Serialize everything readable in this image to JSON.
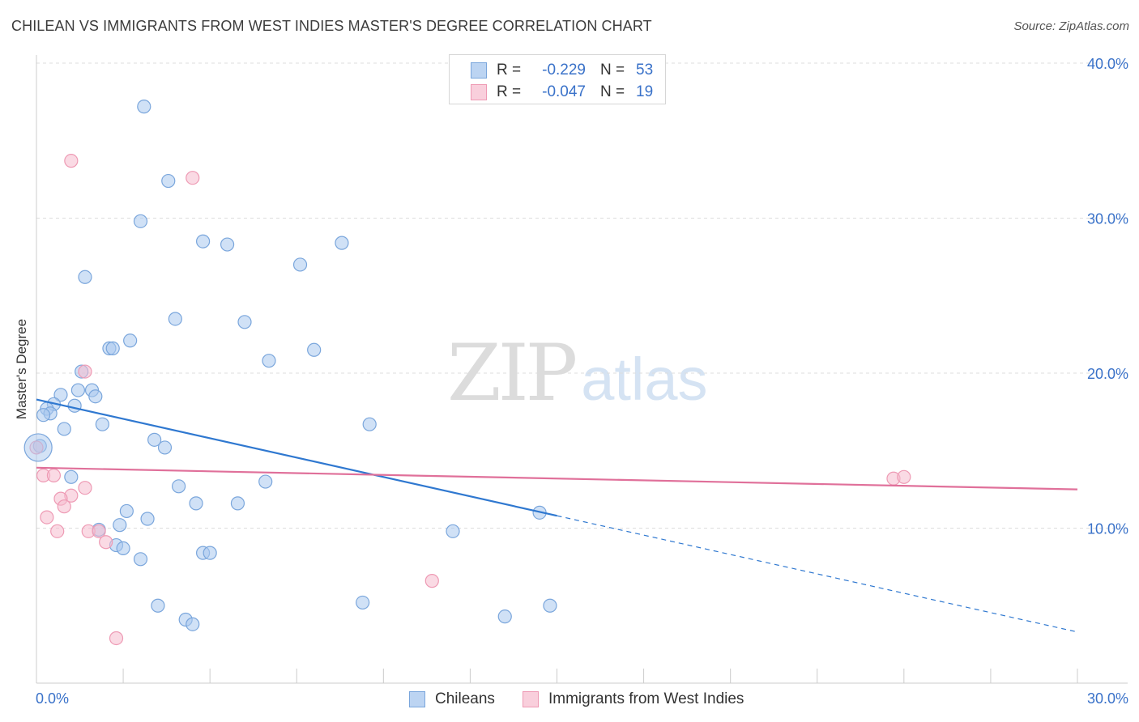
{
  "title": "CHILEAN VS IMMIGRANTS FROM WEST INDIES MASTER'S DEGREE CORRELATION CHART",
  "source": "Source: ZipAtlas.com",
  "watermark": {
    "zip": "ZIP",
    "atlas": "atlas"
  },
  "legend": {
    "r_label": "R =",
    "n_label": "N =",
    "series1": {
      "r": "-0.229",
      "n": "53"
    },
    "series2": {
      "r": "-0.047",
      "n": "19"
    }
  },
  "bottom_legend": {
    "series1": "Chileans",
    "series2": "Immigrants from West Indies"
  },
  "colors": {
    "blue_fill": "#a9c8ee",
    "blue_stroke": "#7aa6dc",
    "blue_line": "#2f78d0",
    "pink_fill": "#f6bccd",
    "pink_stroke": "#ee9ab4",
    "pink_line": "#e0709a",
    "axis_text": "#3a72c9",
    "grid": "#dddddd"
  },
  "chart_data": {
    "type": "scatter",
    "title": "CHILEAN VS IMMIGRANTS FROM WEST INDIES MASTER'S DEGREE CORRELATION CHART",
    "xlabel": "",
    "ylabel": "Master's Degree",
    "xlim": [
      0,
      30
    ],
    "ylim": [
      0,
      40
    ],
    "x_tick_labels": [
      "0.0%",
      "30.0%"
    ],
    "y_ticks": [
      10,
      20,
      30,
      40
    ],
    "y_tick_labels": [
      "10.0%",
      "20.0%",
      "30.0%",
      "40.0%"
    ],
    "grid": true,
    "series": [
      {
        "name": "Chileans",
        "r": -0.229,
        "n": 53,
        "points": [
          [
            3.1,
            37.2
          ],
          [
            3.8,
            32.4
          ],
          [
            3.0,
            29.8
          ],
          [
            4.8,
            28.5
          ],
          [
            5.5,
            28.3
          ],
          [
            8.8,
            28.4
          ],
          [
            7.6,
            27.0
          ],
          [
            1.4,
            26.2
          ],
          [
            4.0,
            23.5
          ],
          [
            6.0,
            23.3
          ],
          [
            2.7,
            22.1
          ],
          [
            2.1,
            21.6
          ],
          [
            2.2,
            21.6
          ],
          [
            8.0,
            21.5
          ],
          [
            6.7,
            20.8
          ],
          [
            1.3,
            20.1
          ],
          [
            1.6,
            18.9
          ],
          [
            1.2,
            18.9
          ],
          [
            1.7,
            18.5
          ],
          [
            0.7,
            18.6
          ],
          [
            0.5,
            18.0
          ],
          [
            1.1,
            17.9
          ],
          [
            0.3,
            17.7
          ],
          [
            0.4,
            17.4
          ],
          [
            0.2,
            17.3
          ],
          [
            0.8,
            16.4
          ],
          [
            1.9,
            16.7
          ],
          [
            9.6,
            16.7
          ],
          [
            3.4,
            15.7
          ],
          [
            3.7,
            15.2
          ],
          [
            0.1,
            15.3
          ],
          [
            1.0,
            13.3
          ],
          [
            6.6,
            13.0
          ],
          [
            4.1,
            12.7
          ],
          [
            4.6,
            11.6
          ],
          [
            5.8,
            11.6
          ],
          [
            2.6,
            11.1
          ],
          [
            3.2,
            10.6
          ],
          [
            2.4,
            10.2
          ],
          [
            14.5,
            11.0
          ],
          [
            1.8,
            9.9
          ],
          [
            12.0,
            9.8
          ],
          [
            2.3,
            8.9
          ],
          [
            2.5,
            8.7
          ],
          [
            4.8,
            8.4
          ],
          [
            5.0,
            8.4
          ],
          [
            3.0,
            8.0
          ],
          [
            3.5,
            5.0
          ],
          [
            9.4,
            5.2
          ],
          [
            14.8,
            5.0
          ],
          [
            4.3,
            4.1
          ],
          [
            4.5,
            3.8
          ],
          [
            13.5,
            4.3
          ]
        ],
        "trend": {
          "x": [
            0,
            15.0,
            30
          ],
          "y": [
            18.3,
            10.8,
            3.3
          ],
          "solid_until": 15.0
        }
      },
      {
        "name": "Immigrants from West Indies",
        "r": -0.047,
        "n": 19,
        "points": [
          [
            1.0,
            33.7
          ],
          [
            4.5,
            32.6
          ],
          [
            1.4,
            20.1
          ],
          [
            0.0,
            15.2
          ],
          [
            0.2,
            13.4
          ],
          [
            0.5,
            13.4
          ],
          [
            1.4,
            12.6
          ],
          [
            1.0,
            12.1
          ],
          [
            0.7,
            11.9
          ],
          [
            0.8,
            11.4
          ],
          [
            0.3,
            10.7
          ],
          [
            0.6,
            9.8
          ],
          [
            1.5,
            9.8
          ],
          [
            1.8,
            9.8
          ],
          [
            2.0,
            9.1
          ],
          [
            11.4,
            6.6
          ],
          [
            2.3,
            2.9
          ],
          [
            24.7,
            13.2
          ],
          [
            25.0,
            13.3
          ]
        ],
        "trend": {
          "x": [
            0,
            30
          ],
          "y": [
            13.9,
            12.5
          ]
        }
      }
    ]
  }
}
